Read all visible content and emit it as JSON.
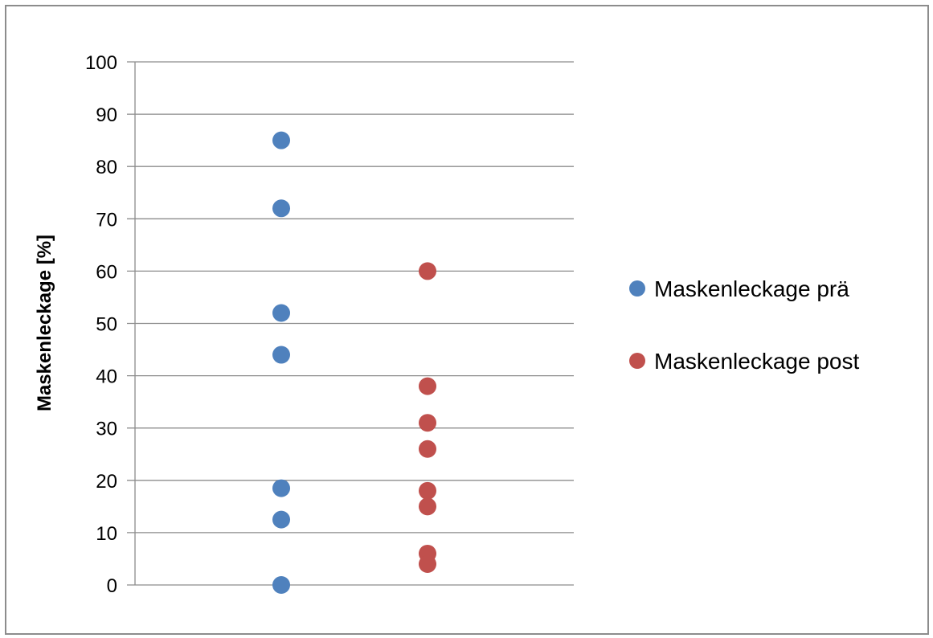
{
  "chart_data": {
    "type": "scatter",
    "title": "",
    "xlabel": "",
    "ylabel": "Maskenleckage [%]",
    "ylim": [
      0,
      100
    ],
    "yticks": [
      0,
      10,
      20,
      30,
      40,
      50,
      60,
      70,
      80,
      90,
      100
    ],
    "xlim": [
      0,
      3
    ],
    "grid": true,
    "legend_position": "right",
    "series": [
      {
        "name": "Maskenleckage prä",
        "color": "#4f81bd",
        "x": [
          1,
          1,
          1,
          1,
          1,
          1,
          1
        ],
        "y": [
          85,
          72,
          52,
          44,
          18.5,
          12.5,
          0
        ]
      },
      {
        "name": "Maskenleckage post",
        "color": "#c0504d",
        "x": [
          2,
          2,
          2,
          2,
          2,
          2,
          2,
          2
        ],
        "y": [
          60,
          38,
          31,
          26,
          18,
          15,
          6,
          4
        ]
      }
    ]
  }
}
